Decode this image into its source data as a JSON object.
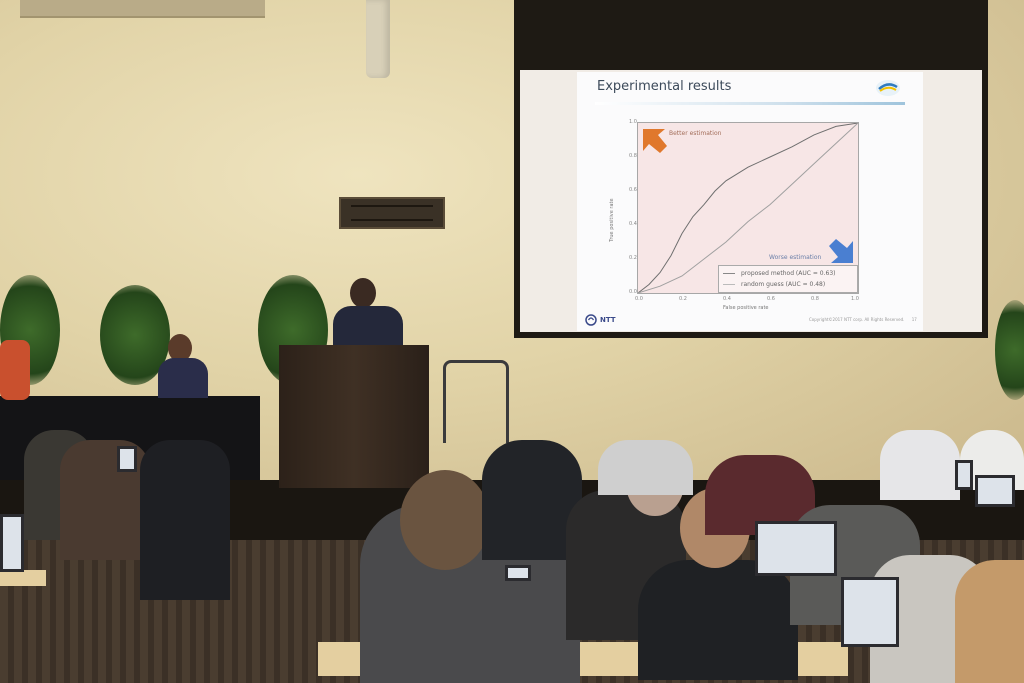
{
  "slide": {
    "title": "Experimental results",
    "brand": "NTT",
    "footer": "Copyright©2017 NTT corp. All Rights Reserved.",
    "page_number": "17"
  },
  "chart_data": {
    "type": "line",
    "xlabel": "False positive rate",
    "ylabel": "True positive rate",
    "xlim": [
      0,
      1
    ],
    "ylim": [
      0,
      1
    ],
    "x_ticks": [
      "0.0",
      "0.2",
      "0.4",
      "0.6",
      "0.8",
      "1.0"
    ],
    "y_ticks": [
      "0.0",
      "0.2",
      "0.4",
      "0.6",
      "0.8",
      "1.0"
    ],
    "annotations": [
      "Better estimation",
      "Worse estimation"
    ],
    "legend_position": "bottom-right",
    "series": [
      {
        "name": "proposed method (AUC = 0.63)",
        "x": [
          0,
          0.05,
          0.1,
          0.15,
          0.2,
          0.25,
          0.3,
          0.35,
          0.4,
          0.5,
          0.6,
          0.7,
          0.8,
          0.9,
          1.0
        ],
        "y": [
          0,
          0.05,
          0.12,
          0.22,
          0.35,
          0.45,
          0.52,
          0.6,
          0.66,
          0.74,
          0.8,
          0.86,
          0.93,
          0.98,
          1.0
        ]
      },
      {
        "name": "random guess (AUC = 0.48)",
        "x": [
          0,
          0.1,
          0.2,
          0.3,
          0.4,
          0.5,
          0.6,
          0.7,
          0.8,
          0.9,
          1.0
        ],
        "y": [
          0,
          0.04,
          0.1,
          0.2,
          0.3,
          0.42,
          0.52,
          0.64,
          0.76,
          0.88,
          1.0
        ]
      }
    ]
  }
}
